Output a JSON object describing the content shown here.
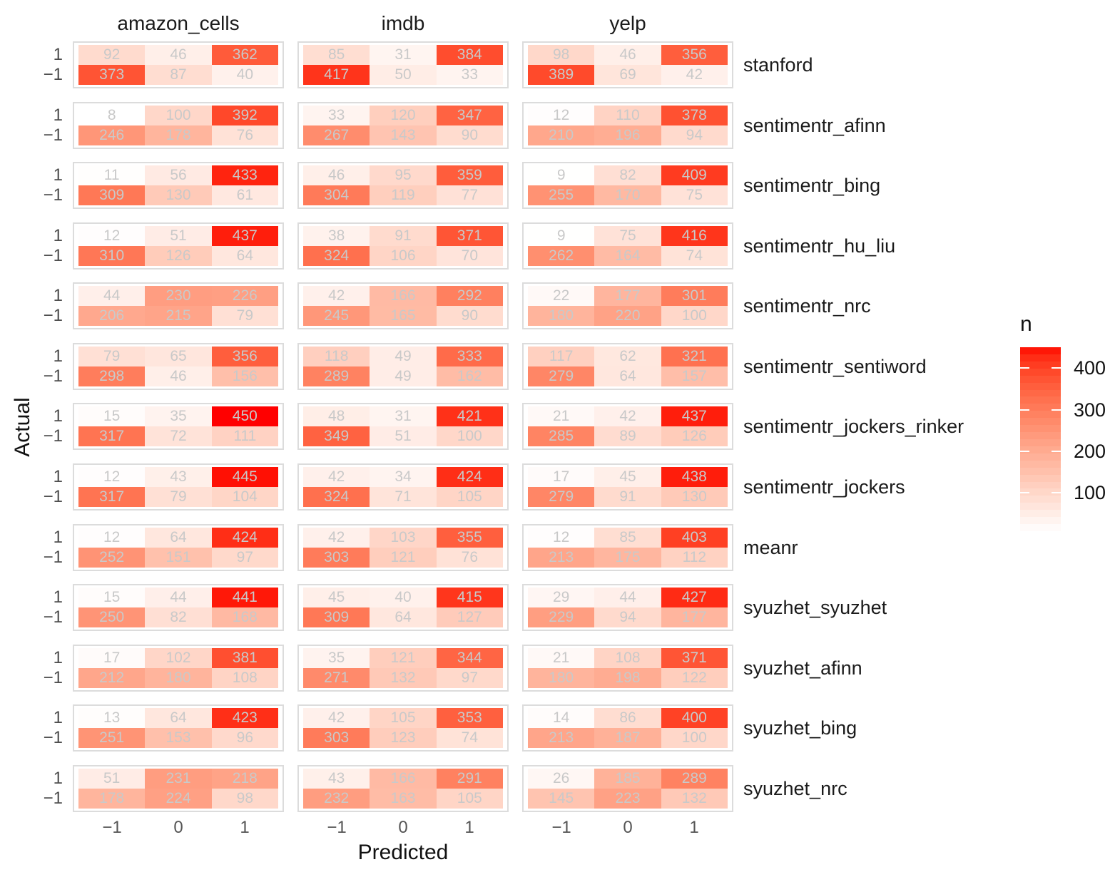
{
  "chart_data": {
    "type": "heatmap",
    "description": "Faceted confusion-matrix heatmaps of sentiment classifiers (rows) across datasets (columns); tile fill encodes count n, tiles labeled with counts. Top tile row = Actual 1, bottom = Actual -1; tile columns = Predicted -1, 0, 1.",
    "xlabel": "Predicted",
    "ylabel": "Actual",
    "facet_columns": [
      "amazon_cells",
      "imdb",
      "yelp"
    ],
    "facet_rows": [
      "stanford",
      "sentimentr_afinn",
      "sentimentr_bing",
      "sentimentr_hu_liu",
      "sentimentr_nrc",
      "sentimentr_sentiword",
      "sentimentr_jockers_rinker",
      "sentimentr_jockers",
      "meanr",
      "syuzhet_syuzhet",
      "syuzhet_afinn",
      "syuzhet_bing",
      "syuzhet_nrc"
    ],
    "x_categories": [
      "−1",
      "0",
      "1"
    ],
    "y_categories": [
      "1",
      "−1"
    ],
    "legend": {
      "title": "n",
      "ticks": [
        400,
        300,
        200,
        100
      ],
      "limits": [
        8,
        450
      ],
      "low_color": "#FFFFFF",
      "high_color": "#FF0000"
    },
    "cells": [
      {
        "method": "stanford",
        "values": {
          "amazon_cells": [
            [
              92,
              46,
              362
            ],
            [
              373,
              87,
              40
            ]
          ],
          "imdb": [
            [
              85,
              31,
              384
            ],
            [
              417,
              50,
              33
            ]
          ],
          "yelp": [
            [
              98,
              46,
              356
            ],
            [
              389,
              69,
              42
            ]
          ]
        }
      },
      {
        "method": "sentimentr_afinn",
        "values": {
          "amazon_cells": [
            [
              8,
              100,
              392
            ],
            [
              246,
              178,
              76
            ]
          ],
          "imdb": [
            [
              33,
              120,
              347
            ],
            [
              267,
              143,
              90
            ]
          ],
          "yelp": [
            [
              12,
              110,
              378
            ],
            [
              210,
              196,
              94
            ]
          ]
        }
      },
      {
        "method": "sentimentr_bing",
        "values": {
          "amazon_cells": [
            [
              11,
              56,
              433
            ],
            [
              309,
              130,
              61
            ]
          ],
          "imdb": [
            [
              46,
              95,
              359
            ],
            [
              304,
              119,
              77
            ]
          ],
          "yelp": [
            [
              9,
              82,
              409
            ],
            [
              255,
              170,
              75
            ]
          ]
        }
      },
      {
        "method": "sentimentr_hu_liu",
        "values": {
          "amazon_cells": [
            [
              12,
              51,
              437
            ],
            [
              310,
              126,
              64
            ]
          ],
          "imdb": [
            [
              38,
              91,
              371
            ],
            [
              324,
              106,
              70
            ]
          ],
          "yelp": [
            [
              9,
              75,
              416
            ],
            [
              262,
              164,
              74
            ]
          ]
        }
      },
      {
        "method": "sentimentr_nrc",
        "values": {
          "amazon_cells": [
            [
              44,
              230,
              226
            ],
            [
              206,
              215,
              79
            ]
          ],
          "imdb": [
            [
              42,
              166,
              292
            ],
            [
              245,
              165,
              90
            ]
          ],
          "yelp": [
            [
              22,
              177,
              301
            ],
            [
              180,
              220,
              100
            ]
          ]
        }
      },
      {
        "method": "sentimentr_sentiword",
        "values": {
          "amazon_cells": [
            [
              79,
              65,
              356
            ],
            [
              298,
              46,
              156
            ]
          ],
          "imdb": [
            [
              118,
              49,
              333
            ],
            [
              289,
              49,
              162
            ]
          ],
          "yelp": [
            [
              117,
              62,
              321
            ],
            [
              279,
              64,
              157
            ]
          ]
        }
      },
      {
        "method": "sentimentr_jockers_rinker",
        "values": {
          "amazon_cells": [
            [
              15,
              35,
              450
            ],
            [
              317,
              72,
              111
            ]
          ],
          "imdb": [
            [
              48,
              31,
              421
            ],
            [
              349,
              51,
              100
            ]
          ],
          "yelp": [
            [
              21,
              42,
              437
            ],
            [
              285,
              89,
              126
            ]
          ]
        }
      },
      {
        "method": "sentimentr_jockers",
        "values": {
          "amazon_cells": [
            [
              12,
              43,
              445
            ],
            [
              317,
              79,
              104
            ]
          ],
          "imdb": [
            [
              42,
              34,
              424
            ],
            [
              324,
              71,
              105
            ]
          ],
          "yelp": [
            [
              17,
              45,
              438
            ],
            [
              279,
              91,
              130
            ]
          ]
        }
      },
      {
        "method": "meanr",
        "values": {
          "amazon_cells": [
            [
              12,
              64,
              424
            ],
            [
              252,
              151,
              97
            ]
          ],
          "imdb": [
            [
              42,
              103,
              355
            ],
            [
              303,
              121,
              76
            ]
          ],
          "yelp": [
            [
              12,
              85,
              403
            ],
            [
              213,
              175,
              112
            ]
          ]
        }
      },
      {
        "method": "syuzhet_syuzhet",
        "values": {
          "amazon_cells": [
            [
              15,
              44,
              441
            ],
            [
              250,
              82,
              168
            ]
          ],
          "imdb": [
            [
              45,
              40,
              415
            ],
            [
              309,
              64,
              127
            ]
          ],
          "yelp": [
            [
              29,
              44,
              427
            ],
            [
              229,
              94,
              177
            ]
          ]
        }
      },
      {
        "method": "syuzhet_afinn",
        "values": {
          "amazon_cells": [
            [
              17,
              102,
              381
            ],
            [
              212,
              180,
              108
            ]
          ],
          "imdb": [
            [
              35,
              121,
              344
            ],
            [
              271,
              132,
              97
            ]
          ],
          "yelp": [
            [
              21,
              108,
              371
            ],
            [
              180,
              198,
              122
            ]
          ]
        }
      },
      {
        "method": "syuzhet_bing",
        "values": {
          "amazon_cells": [
            [
              13,
              64,
              423
            ],
            [
              251,
              153,
              96
            ]
          ],
          "imdb": [
            [
              42,
              105,
              353
            ],
            [
              303,
              123,
              74
            ]
          ],
          "yelp": [
            [
              14,
              86,
              400
            ],
            [
              213,
              187,
              100
            ]
          ]
        }
      },
      {
        "method": "syuzhet_nrc",
        "values": {
          "amazon_cells": [
            [
              51,
              231,
              218
            ],
            [
              178,
              224,
              98
            ]
          ],
          "imdb": [
            [
              43,
              166,
              291
            ],
            [
              232,
              163,
              105
            ]
          ],
          "yelp": [
            [
              26,
              185,
              289
            ],
            [
              145,
              223,
              132
            ]
          ]
        }
      }
    ]
  },
  "colors": {
    "cell_text": "#C9C9C9",
    "axis_text": "#4D4D4D",
    "label_text": "#1B1B1B",
    "panel_border": "#DCDCDC",
    "background": "#FFFFFF"
  }
}
